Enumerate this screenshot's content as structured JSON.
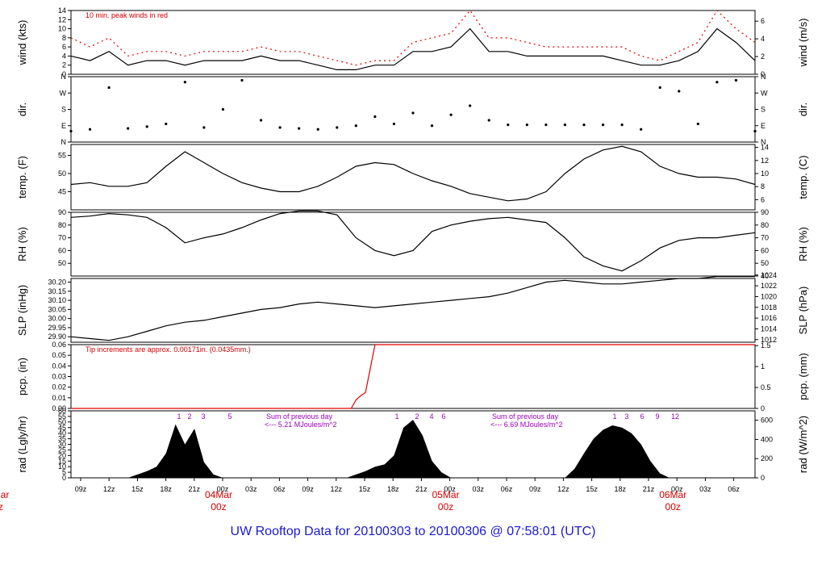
{
  "title": "UW Rooftop Data for 20100303  to  20100306 @ 07:58:01  (UTC)",
  "colors": {
    "data": "#000000",
    "gust": "#e00000",
    "note_red": "#d00000",
    "note_purple": "#9a00b8",
    "title": "#1a1ad0"
  },
  "x_axis": {
    "hour_ticks": [
      "09z",
      "12z",
      "15z",
      "18z",
      "21z",
      "00z",
      "03z",
      "06z",
      "09z",
      "12z",
      "15z",
      "18z",
      "21z",
      "00z",
      "03z",
      "06z",
      "09z",
      "12z",
      "15z",
      "18z",
      "21z",
      "00z",
      "03z",
      "06z"
    ],
    "day_labels": [
      {
        "label": "04Mar",
        "hour": "00z",
        "index": 5
      },
      {
        "label": "05Mar",
        "hour": "00z",
        "index": 13
      },
      {
        "label": "06Mar",
        "hour": "00z",
        "index": 21
      }
    ],
    "left_cutoff": {
      "label": "Mar",
      "hour": "z"
    }
  },
  "chart_data": [
    {
      "type": "line",
      "panel": "wind",
      "ylabel_left": "wind (kts)",
      "ylabel_right": "wind (m/s)",
      "ylim": [
        0,
        14
      ],
      "left_ticks": [
        "0",
        "2",
        "4",
        "6",
        "8",
        "10",
        "12",
        "14"
      ],
      "right_ticks": [
        "0",
        "2",
        "4",
        "6"
      ],
      "right_tick_values": [
        0,
        2,
        4,
        6
      ],
      "right_scale": 0.5144,
      "annotation": "10 min. peak winds in red",
      "x_hours": [
        0,
        2,
        4,
        6,
        8,
        10,
        12,
        14,
        16,
        18,
        20,
        22,
        24,
        26,
        28,
        30,
        32,
        34,
        36,
        38,
        40,
        42,
        44,
        46,
        48,
        50,
        52,
        54,
        56,
        58,
        60,
        62,
        64,
        66,
        68,
        70,
        72
      ],
      "series": [
        {
          "name": "10 min. peak winds",
          "values": [
            8,
            6,
            8,
            4,
            5,
            5,
            4,
            5,
            5,
            5,
            6,
            5,
            5,
            4,
            3,
            2,
            3,
            3,
            7,
            8,
            9,
            14,
            8,
            8,
            7,
            6,
            6,
            6,
            6,
            6,
            4,
            3,
            5,
            7,
            14,
            10,
            7
          ]
        },
        {
          "values": [
            4,
            3,
            5,
            2,
            3,
            3,
            2,
            3,
            3,
            3,
            4,
            3,
            3,
            2,
            1,
            1,
            2,
            2,
            5,
            5,
            6,
            10,
            5,
            5,
            4,
            4,
            4,
            4,
            4,
            3,
            2,
            2,
            3,
            5,
            10,
            7,
            3
          ]
        }
      ]
    },
    {
      "type": "scatter",
      "panel": "dir",
      "ylabel_left": "dir.",
      "ylabel_right": "dir.",
      "ylim": [
        0,
        360
      ],
      "left_ticks": [
        "N",
        "E",
        "S",
        "W",
        "N"
      ],
      "right_ticks": [
        "N",
        "E",
        "S",
        "W",
        "N"
      ],
      "x_hours": [
        0,
        2,
        4,
        6,
        8,
        10,
        12,
        14,
        16,
        18,
        20,
        22,
        24,
        26,
        28,
        30,
        32,
        34,
        36,
        38,
        40,
        42,
        44,
        46,
        48,
        50,
        52,
        54,
        56,
        58,
        60,
        62,
        64,
        66,
        68,
        70,
        72
      ],
      "values": [
        60,
        70,
        300,
        75,
        85,
        100,
        330,
        80,
        180,
        340,
        120,
        80,
        75,
        70,
        80,
        90,
        140,
        100,
        160,
        90,
        150,
        200,
        120,
        95,
        95,
        95,
        95,
        95,
        95,
        95,
        70,
        300,
        280,
        100,
        330,
        340,
        60
      ]
    },
    {
      "type": "line",
      "panel": "temp",
      "ylabel_left": "temp. (F)",
      "ylabel_right": "temp. (C)",
      "ylim": [
        40,
        58
      ],
      "left_ticks": [
        "45",
        "50",
        "55"
      ],
      "left_tick_values": [
        45,
        50,
        55
      ],
      "right_ticks": [
        "6",
        "8",
        "10",
        "12",
        "14"
      ],
      "right_tick_values": [
        6,
        8,
        10,
        12,
        14
      ],
      "right_unit": "C",
      "x_hours": [
        0,
        2,
        4,
        6,
        8,
        10,
        12,
        14,
        16,
        18,
        20,
        22,
        24,
        26,
        28,
        30,
        32,
        34,
        36,
        38,
        40,
        42,
        44,
        46,
        48,
        50,
        52,
        54,
        56,
        58,
        60,
        62,
        64,
        66,
        68,
        70,
        72
      ],
      "values": [
        47,
        47.5,
        46.5,
        46.5,
        47.5,
        52,
        56,
        53,
        50,
        47.5,
        46,
        45,
        45,
        46.5,
        49,
        52,
        53,
        52.5,
        50,
        48,
        46.5,
        44.5,
        43.5,
        42.5,
        43,
        45,
        50,
        54,
        56.5,
        57.5,
        56,
        52,
        50,
        49,
        49,
        48.5,
        47
      ]
    },
    {
      "type": "line",
      "panel": "rh",
      "ylabel_left": "RH (%)",
      "ylabel_right": "RH (%)",
      "ylim": [
        40,
        90
      ],
      "left_ticks": [
        "50",
        "60",
        "70",
        "80",
        "90"
      ],
      "left_tick_values": [
        50,
        60,
        70,
        80,
        90
      ],
      "right_ticks": [
        "40",
        "50",
        "60",
        "70",
        "80",
        "90"
      ],
      "right_tick_values": [
        40,
        50,
        60,
        70,
        80,
        90
      ],
      "x_hours": [
        0,
        2,
        4,
        6,
        8,
        10,
        12,
        14,
        16,
        18,
        20,
        22,
        24,
        26,
        28,
        30,
        32,
        34,
        36,
        38,
        40,
        42,
        44,
        46,
        48,
        50,
        52,
        54,
        56,
        58,
        60,
        62,
        64,
        66,
        68,
        70,
        72
      ],
      "values": [
        86,
        87,
        89,
        88,
        86,
        78,
        66,
        70,
        73,
        78,
        84,
        89,
        91,
        91,
        88,
        70,
        60,
        56,
        60,
        75,
        80,
        83,
        85,
        86,
        84,
        82,
        70,
        55,
        48,
        44,
        52,
        62,
        68,
        70,
        70,
        72,
        74
      ]
    },
    {
      "type": "line",
      "panel": "slp",
      "ylabel_left": "SLP (inHg)",
      "ylabel_right": "SLP (hPa)",
      "ylim": [
        29.87,
        30.22
      ],
      "left_ticks": [
        "29.90",
        "29.95",
        "30.00",
        "30.05",
        "30.10",
        "30.15",
        "30.20"
      ],
      "left_tick_values": [
        29.9,
        29.95,
        30.0,
        30.05,
        30.1,
        30.15,
        30.2
      ],
      "right_ticks": [
        "1012",
        "1014",
        "1016",
        "1018",
        "1020",
        "1022",
        "1024"
      ],
      "right_tick_values": [
        1012,
        1014,
        1016,
        1018,
        1020,
        1022,
        1024
      ],
      "x_hours": [
        0,
        2,
        4,
        6,
        8,
        10,
        12,
        14,
        16,
        18,
        20,
        22,
        24,
        26,
        28,
        30,
        32,
        34,
        36,
        38,
        40,
        42,
        44,
        46,
        48,
        50,
        52,
        54,
        56,
        58,
        60,
        62,
        64,
        66,
        68,
        70,
        72
      ],
      "values": [
        29.9,
        29.89,
        29.88,
        29.9,
        29.93,
        29.96,
        29.98,
        29.99,
        30.01,
        30.03,
        30.05,
        30.06,
        30.08,
        30.09,
        30.08,
        30.07,
        30.06,
        30.07,
        30.08,
        30.09,
        30.1,
        30.11,
        30.12,
        30.14,
        30.17,
        30.2,
        30.21,
        30.2,
        30.19,
        30.19,
        30.2,
        30.21,
        30.22,
        30.22,
        30.23,
        30.23,
        30.23
      ]
    },
    {
      "type": "line",
      "panel": "pcp",
      "ylabel_left": "pcp. (in)",
      "ylabel_right": "pcp. (mm)",
      "ylim": [
        0,
        0.06
      ],
      "left_ticks": [
        "0.00",
        "0.01",
        "0.02",
        "0.03",
        "0.04",
        "0.05",
        "0.06"
      ],
      "left_tick_values": [
        0,
        0.01,
        0.02,
        0.03,
        0.04,
        0.05,
        0.06
      ],
      "right_ticks": [
        "0",
        "0.5",
        "1",
        "1.5"
      ],
      "right_tick_values": [
        0,
        0.5,
        1,
        1.5
      ],
      "annotation": "Tip increments are approx. 0.00171in. (0.0435mm.)",
      "x_hours": [
        0,
        20,
        29.5,
        30,
        30.5,
        31,
        32,
        40,
        60,
        72
      ],
      "values": [
        0,
        0,
        0,
        0.008,
        0.012,
        0.015,
        0.06,
        0.06,
        0.06,
        0.06
      ]
    },
    {
      "type": "area",
      "panel": "rad",
      "ylabel_left": "rad (Lgly/hr)",
      "ylabel_right": "rad (W/m^2)",
      "ylim": [
        0,
        60
      ],
      "left_ticks": [
        "0",
        "5",
        "10",
        "15",
        "20",
        "25",
        "30",
        "35",
        "40",
        "45",
        "50",
        "55",
        "60"
      ],
      "left_tick_values": [
        0,
        5,
        10,
        15,
        20,
        25,
        30,
        35,
        40,
        45,
        50,
        55,
        60
      ],
      "right_ticks": [
        "0",
        "200",
        "400",
        "600"
      ],
      "right_tick_values": [
        0,
        200,
        400,
        600
      ],
      "annotations": [
        {
          "text": "Sum of previous day",
          "text2": "<--- 5.21 MJoules/m^2"
        },
        {
          "text": "Sum of previous day",
          "text2": "<--- 6.69 MJoules/m^2"
        }
      ],
      "uv_labels": [
        "1",
        "2",
        "3",
        "5",
        "1",
        "2",
        "4",
        "6",
        "1",
        "3",
        "6",
        "9",
        "12"
      ],
      "x_hours": [
        0,
        6,
        7,
        8,
        9,
        10,
        11,
        12,
        13,
        14,
        15,
        16,
        17,
        18,
        24,
        29,
        30,
        31,
        32,
        33,
        34,
        35,
        36,
        37,
        38,
        39,
        40,
        41,
        42,
        48,
        52,
        53,
        54,
        55,
        56,
        57,
        58,
        59,
        60,
        61,
        62,
        63,
        64,
        65,
        66,
        72
      ],
      "values": [
        0,
        0,
        3,
        6,
        10,
        22,
        48,
        30,
        44,
        14,
        3,
        0,
        0,
        0,
        0,
        0,
        3,
        6,
        10,
        12,
        20,
        45,
        52,
        38,
        15,
        5,
        0,
        0,
        0,
        0,
        0,
        8,
        22,
        35,
        43,
        47,
        45,
        40,
        30,
        15,
        4,
        0,
        0,
        0,
        0,
        0
      ]
    }
  ]
}
